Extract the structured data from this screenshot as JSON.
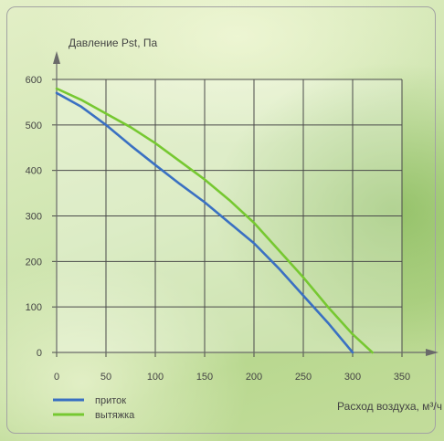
{
  "chart_data": {
    "type": "line",
    "ylabel": "Давление Pst, Па",
    "xlabel": "Расход воздуха, м³/ч",
    "xlim": [
      0,
      350
    ],
    "ylim": [
      0,
      600
    ],
    "x_ticks": [
      "0",
      "50",
      "100",
      "150",
      "200",
      "250",
      "300",
      "350"
    ],
    "y_ticks": [
      "0",
      "100",
      "200",
      "300",
      "400",
      "500",
      "600"
    ],
    "grid": true,
    "legend_position": "bottom-left",
    "series": [
      {
        "name": "приток",
        "color": "#3a70c2",
        "points": [
          [
            0,
            570
          ],
          [
            25,
            540
          ],
          [
            50,
            500
          ],
          [
            75,
            455
          ],
          [
            100,
            412
          ],
          [
            125,
            370
          ],
          [
            150,
            330
          ],
          [
            175,
            285
          ],
          [
            200,
            240
          ],
          [
            225,
            185
          ],
          [
            250,
            125
          ],
          [
            275,
            65
          ],
          [
            300,
            0
          ]
        ]
      },
      {
        "name": "вытяжка",
        "color": "#76c831",
        "points": [
          [
            0,
            580
          ],
          [
            25,
            555
          ],
          [
            50,
            525
          ],
          [
            75,
            495
          ],
          [
            100,
            460
          ],
          [
            125,
            420
          ],
          [
            150,
            380
          ],
          [
            175,
            335
          ],
          [
            200,
            285
          ],
          [
            225,
            225
          ],
          [
            250,
            165
          ],
          [
            275,
            100
          ],
          [
            300,
            40
          ],
          [
            320,
            0
          ]
        ]
      }
    ]
  }
}
